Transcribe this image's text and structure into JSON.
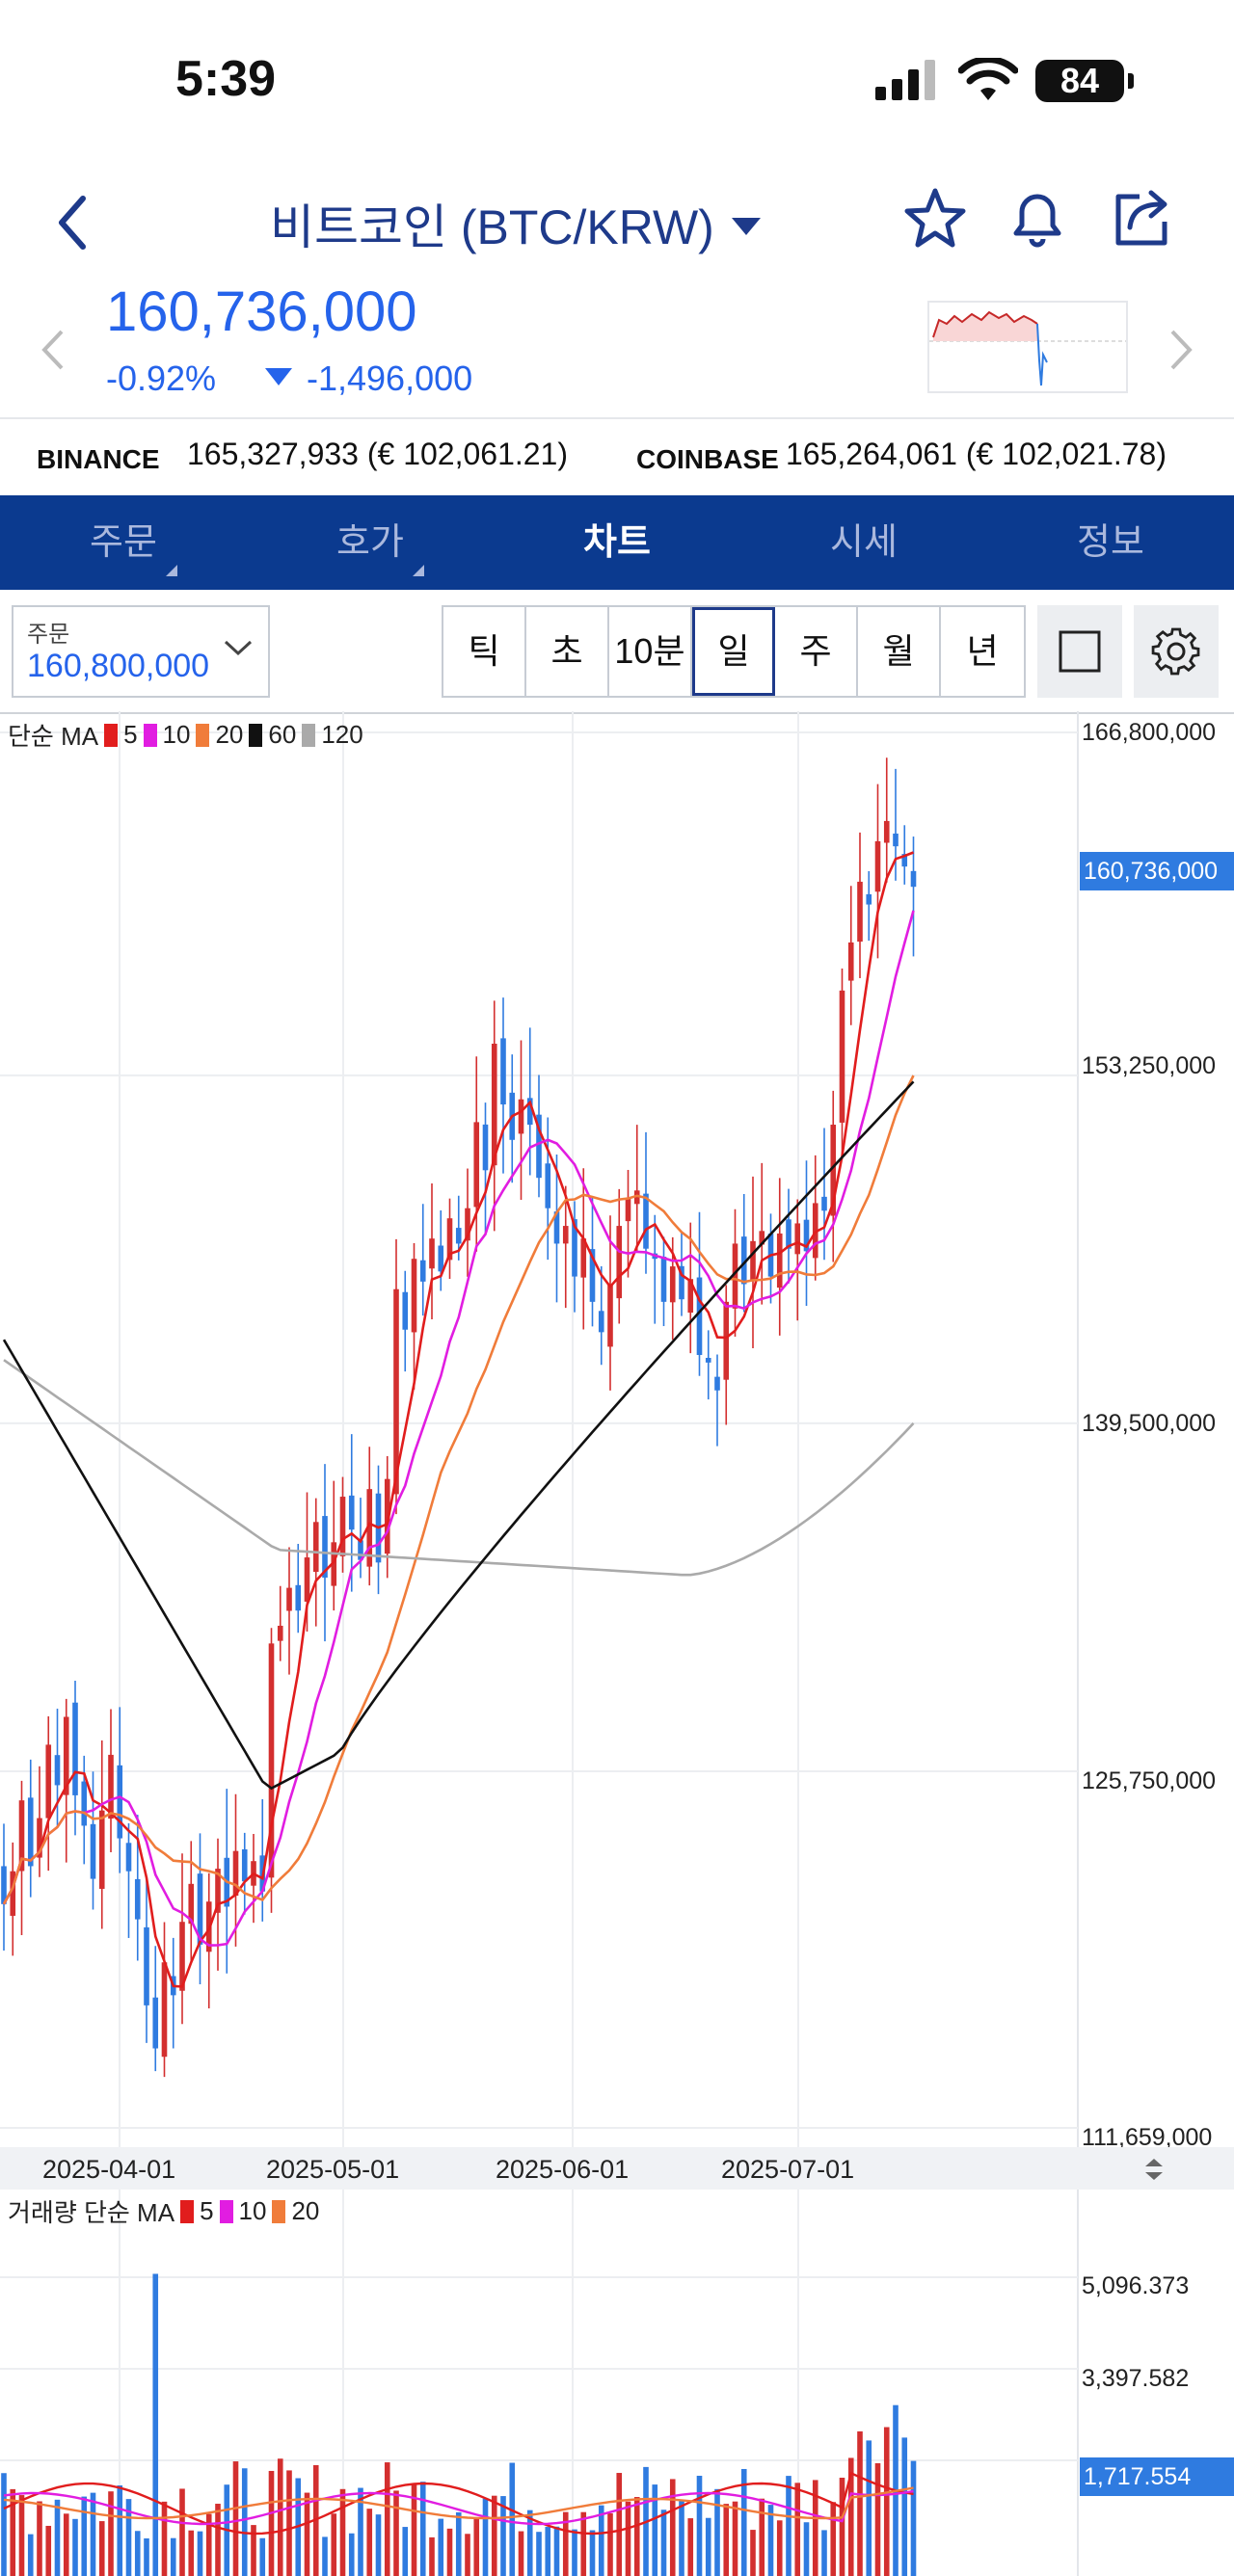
{
  "status_bar": {
    "time": "5:39",
    "battery": "84"
  },
  "header": {
    "title": "비트코인 (BTC/KRW)"
  },
  "price": {
    "value": "160,736,000",
    "change_pct": "-0.92%",
    "change_amt": "-1,496,000"
  },
  "exchanges": [
    {
      "name": "BINANCE",
      "value": "165,327,933 (€ 102,061.21)"
    },
    {
      "name": "COINBASE",
      "value": "165,264,061 (€ 102,021.78)"
    }
  ],
  "tabs": [
    "주문",
    "호가",
    "차트",
    "시세",
    "정보"
  ],
  "active_tab": "차트",
  "order": {
    "label": "주문",
    "value": "160,800,000"
  },
  "periods": [
    "틱",
    "초",
    "10분",
    "일",
    "주",
    "월",
    "년"
  ],
  "selected_period": "일",
  "legend": {
    "label": "단순 MA",
    "items": [
      {
        "name": "5",
        "color": "#e11d1d"
      },
      {
        "name": "10",
        "color": "#e11de1"
      },
      {
        "name": "20",
        "color": "#f07c3a"
      },
      {
        "name": "60",
        "color": "#111111"
      },
      {
        "name": "120",
        "color": "#aaaaaa"
      }
    ]
  },
  "volume_legend": {
    "label": "거래량 단순 MA",
    "items": [
      {
        "name": "5",
        "color": "#e11d1d"
      },
      {
        "name": "10",
        "color": "#e11de1"
      },
      {
        "name": "20",
        "color": "#f07c3a"
      }
    ]
  },
  "colors": {
    "up": "#d32f2f",
    "down": "#2f7be0",
    "brand": "#0b3a8f",
    "accent": "#2563eb"
  },
  "chart_data": {
    "type": "candlestick",
    "x_labels": [
      "2025-04-01",
      "2025-05-01",
      "2025-06-01",
      "2025-07-01"
    ],
    "y_ticks": [
      "166,800,000",
      "153,250,000",
      "139,500,000",
      "125,750,000",
      "111,659,000"
    ],
    "ylim": [
      111659000,
      166800000
    ],
    "current_price": "160,736,000",
    "closes_million": [
      120.5,
      121.8,
      124.6,
      122.0,
      123.9,
      126.8,
      125.2,
      127.9,
      124.8,
      123.6,
      121.5,
      124.2,
      126.4,
      123.1,
      121.8,
      119.9,
      116.5,
      114.8,
      118.2,
      116.9,
      119.8,
      121.3,
      118.9,
      120.6,
      121.9,
      120.4,
      122.6,
      121.4,
      122.2,
      121.0,
      130.8,
      131.5,
      133.0,
      132.1,
      134.2,
      135.6,
      133.4,
      134.8,
      136.6,
      135.3,
      134.1,
      136.9,
      134.0,
      137.3,
      144.8,
      143.2,
      146.0,
      145.1,
      146.8,
      145.5,
      147.6,
      146.6,
      148.0,
      151.4,
      149.5,
      154.5,
      152.1,
      150.7,
      152.3,
      151.3,
      149.2,
      148.0,
      146.6,
      147.3,
      145.3,
      146.8,
      144.3,
      143.1,
      145.0,
      147.3,
      148.4,
      148.7,
      146.4,
      146.0,
      144.3,
      145.7,
      144.4,
      145.2,
      142.2,
      141.9,
      140.8,
      144.3,
      146.6,
      145.0,
      146.7,
      147.1,
      145.3,
      147.0,
      146.4,
      147.4,
      146.3,
      148.2,
      147.9,
      151.3,
      156.6,
      158.5,
      160.9,
      160.0,
      162.5,
      163.3,
      162.3,
      161.5,
      160.7
    ],
    "volume_ticks": [
      "5,096.373",
      "3,397.582",
      "1,717.554"
    ],
    "volume_current": "1,717.554"
  }
}
